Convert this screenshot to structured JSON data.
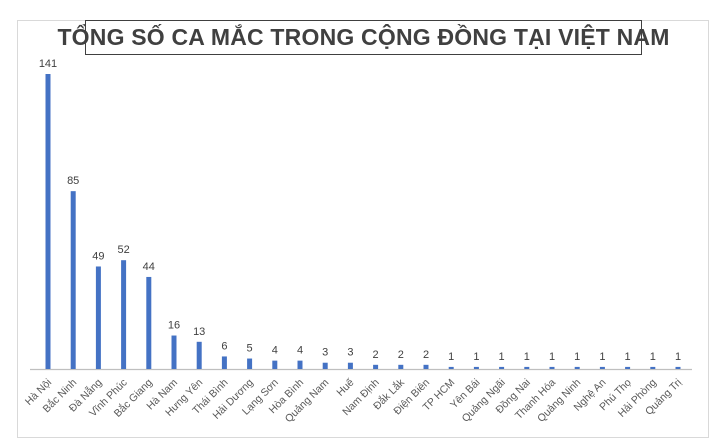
{
  "chart_data": {
    "type": "bar",
    "title": "TỔNG SỐ CA MẮC TRONG CỘNG ĐỒNG TẠI VIỆT NAM",
    "xlabel": "",
    "ylabel": "",
    "ylim": [
      0,
      141
    ],
    "grid": false,
    "legend": null,
    "bar_color": "#4472c4",
    "categories": [
      "Hà Nội",
      "Bắc Ninh",
      "Đà Nẵng",
      "Vĩnh Phúc",
      "Bắc Giang",
      "Hà Nam",
      "Hưng Yên",
      "Thái Bình",
      "Hải Dương",
      "Lạng Sơn",
      "Hòa Bình",
      "Quảng Nam",
      "Huế",
      "Nam Định",
      "Đắk Lắk",
      "Điện Biên",
      "TP HCM",
      "Yên Bái",
      "Quảng Ngãi",
      "Đồng Nai",
      "Thanh Hóa",
      "Quảng Ninh",
      "Nghệ An",
      "Phú Thọ",
      "Hải Phòng",
      "Quảng Trị"
    ],
    "values": [
      141,
      85,
      49,
      52,
      44,
      16,
      13,
      6,
      5,
      4,
      4,
      3,
      3,
      2,
      2,
      2,
      1,
      1,
      1,
      1,
      1,
      1,
      1,
      1,
      1,
      1
    ]
  },
  "header": {
    "title": "TỔNG SỐ CA MẮC TRONG CỘNG ĐỒNG TẠI VIỆT NAM"
  }
}
